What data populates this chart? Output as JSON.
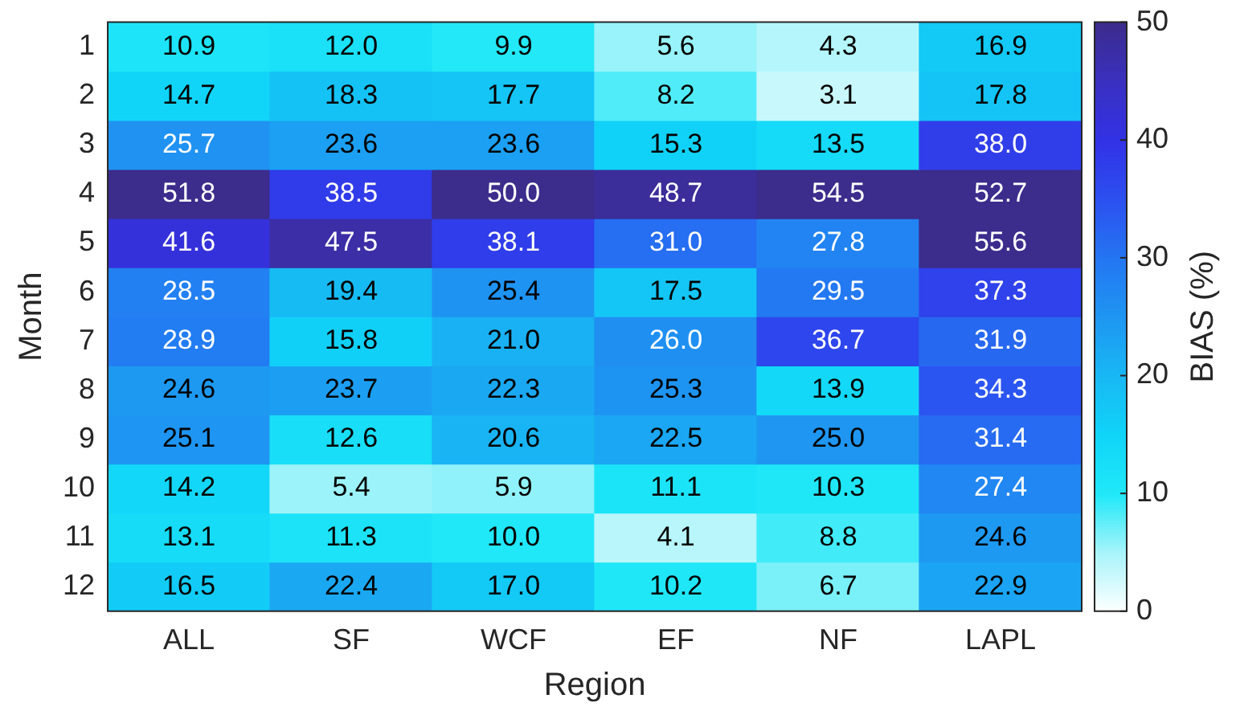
{
  "chart_data": {
    "type": "heatmap",
    "xlabel": "Region",
    "ylabel": "Month",
    "clabel": "BIAS (%)",
    "categories": [
      "ALL",
      "SF",
      "WCF",
      "EF",
      "NF",
      "LAPL"
    ],
    "y_categories": [
      "1",
      "2",
      "3",
      "4",
      "5",
      "6",
      "7",
      "8",
      "9",
      "10",
      "11",
      "12"
    ],
    "cells": [
      [
        10.9,
        12.0,
        9.9,
        5.6,
        4.3,
        16.9
      ],
      [
        14.7,
        18.3,
        17.7,
        8.2,
        3.1,
        17.8
      ],
      [
        25.7,
        23.6,
        23.6,
        15.3,
        13.5,
        38.0
      ],
      [
        51.8,
        38.5,
        50.0,
        48.7,
        54.5,
        52.7
      ],
      [
        41.6,
        47.5,
        38.1,
        31.0,
        27.8,
        55.6
      ],
      [
        28.5,
        19.4,
        25.4,
        17.5,
        29.5,
        37.3
      ],
      [
        28.9,
        15.8,
        21.0,
        26.0,
        36.7,
        31.9
      ],
      [
        24.6,
        23.7,
        22.3,
        25.3,
        13.9,
        34.3
      ],
      [
        25.1,
        12.6,
        20.6,
        22.5,
        25.0,
        31.4
      ],
      [
        14.2,
        5.4,
        5.9,
        11.1,
        10.3,
        27.4
      ],
      [
        13.1,
        11.3,
        10.0,
        4.1,
        8.8,
        24.6
      ],
      [
        16.5,
        22.4,
        17.0,
        10.2,
        6.7,
        22.9
      ]
    ],
    "cell_labels": [
      [
        "10.9",
        "12.0",
        "9.9",
        "5.6",
        "4.3",
        "16.9"
      ],
      [
        "14.7",
        "18.3",
        "17.7",
        "8.2",
        "3.1",
        "17.8"
      ],
      [
        "25.7",
        "23.6",
        "23.6",
        "15.3",
        "13.5",
        "38.0"
      ],
      [
        "51.8",
        "38.5",
        "50.0",
        "48.7",
        "54.5",
        "52.7"
      ],
      [
        "41.6",
        "47.5",
        "38.1",
        "31.0",
        "27.8",
        "55.6"
      ],
      [
        "28.5",
        "19.4",
        "25.4",
        "17.5",
        "29.5",
        "37.3"
      ],
      [
        "28.9",
        "15.8",
        "21.0",
        "26.0",
        "36.7",
        "31.9"
      ],
      [
        "24.6",
        "23.7",
        "22.3",
        "25.3",
        "13.9",
        "34.3"
      ],
      [
        "25.1",
        "12.6",
        "20.6",
        "22.5",
        "25.0",
        "31.4"
      ],
      [
        "14.2",
        "5.4",
        "5.9",
        "11.1",
        "10.3",
        "27.4"
      ],
      [
        "13.1",
        "11.3",
        "10.0",
        "4.1",
        "8.8",
        "24.6"
      ],
      [
        "16.5",
        "22.4",
        "17.0",
        "10.2",
        "6.7",
        "22.9"
      ]
    ],
    "clim": [
      0,
      50
    ],
    "cticks": [
      0,
      10,
      20,
      30,
      40,
      50
    ],
    "data_labels": true
  }
}
